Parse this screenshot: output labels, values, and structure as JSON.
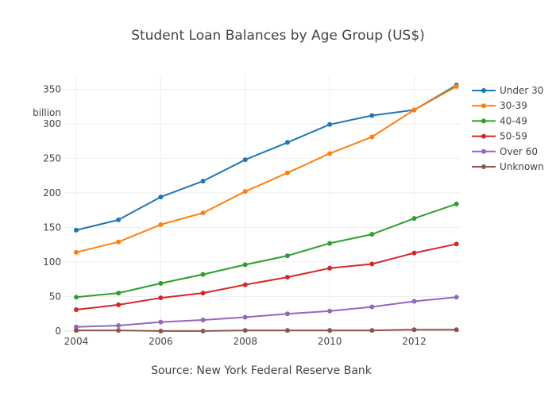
{
  "chart_data": {
    "type": "line",
    "title": "Student Loan Balances by Age Group (US$)",
    "xlabel": "Source: New York Federal Reserve Bank",
    "ylabel": "",
    "y_unit_label": "billion",
    "x": [
      2004,
      2005,
      2006,
      2007,
      2008,
      2009,
      2010,
      2011,
      2012,
      2013
    ],
    "xlim": [
      2003.7,
      2013.1
    ],
    "ylim": [
      -15,
      370
    ],
    "x_ticks": [
      2004,
      2006,
      2008,
      2010,
      2012
    ],
    "y_ticks": [
      0,
      50,
      100,
      150,
      200,
      250,
      300,
      350
    ],
    "grid": true,
    "legend_position": "right",
    "series": [
      {
        "name": "Under 30",
        "color": "#1f77b4",
        "values": [
          146,
          161,
          194,
          217,
          248,
          273,
          299,
          312,
          320,
          356
        ]
      },
      {
        "name": "30-39",
        "color": "#ff7f0e",
        "values": [
          114,
          129,
          154,
          171,
          202,
          229,
          257,
          281,
          320,
          354
        ]
      },
      {
        "name": "40-49",
        "color": "#2ca02c",
        "values": [
          49,
          55,
          69,
          82,
          96,
          109,
          127,
          140,
          163,
          184
        ]
      },
      {
        "name": "50-59",
        "color": "#d62728",
        "values": [
          31,
          38,
          48,
          55,
          67,
          78,
          91,
          97,
          113,
          126
        ]
      },
      {
        "name": "Over 60",
        "color": "#9467bd",
        "values": [
          6,
          8,
          13,
          16,
          20,
          25,
          29,
          35,
          43,
          49
        ]
      },
      {
        "name": "Unknown",
        "color": "#8c564b",
        "values": [
          1,
          1,
          0,
          0,
          1,
          1,
          1,
          1,
          2,
          2
        ]
      }
    ]
  }
}
